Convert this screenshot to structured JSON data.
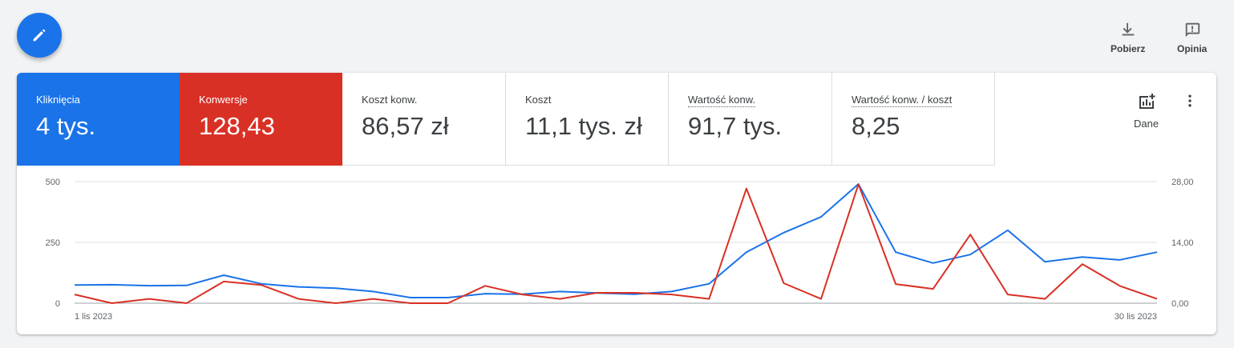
{
  "toolbar": {
    "download_label": "Pobierz",
    "feedback_label": "Opinia"
  },
  "icons": {
    "fab": "pencil-icon",
    "download": "download-icon",
    "feedback": "feedback-icon",
    "data": "add-chart-icon",
    "more": "more-vert-icon"
  },
  "colors": {
    "primary": "#1a73e8",
    "secondary": "#d93025"
  },
  "metrics": [
    {
      "label": "Kliknięcia",
      "value": "4 tys."
    },
    {
      "label": "Konwersje",
      "value": "128,43"
    },
    {
      "label": "Koszt konw.",
      "value": "86,57 zł"
    },
    {
      "label": "Koszt",
      "value": "11,1 tys. zł"
    },
    {
      "label": "Wartość konw.",
      "value": "91,7 tys."
    },
    {
      "label": "Wartość konw. / koszt",
      "value": "8,25"
    }
  ],
  "data_button_label": "Dane",
  "chart_data": {
    "type": "line",
    "x_start_label": "1 lis 2023",
    "x_end_label": "30 lis 2023",
    "left_axis": {
      "ticks": [
        "0",
        "250",
        "500"
      ],
      "range": [
        0,
        500
      ]
    },
    "right_axis": {
      "ticks": [
        "0,00",
        "14,00",
        "28,00"
      ],
      "range": [
        0,
        28
      ]
    },
    "grid": true,
    "series": [
      {
        "name": "Kliknięcia",
        "axis": "left",
        "color": "#1a73e8",
        "values": [
          75,
          76,
          72,
          73,
          115,
          80,
          67,
          62,
          48,
          23,
          23,
          39,
          37,
          48,
          42,
          37,
          48,
          80,
          210,
          290,
          355,
          490,
          210,
          165,
          200,
          300,
          170,
          190,
          178,
          210
        ]
      },
      {
        "name": "Konwersje",
        "axis": "right",
        "color": "#d93025",
        "values": [
          2.0,
          0.0,
          1.0,
          0.0,
          5.0,
          4.2,
          1.0,
          0.0,
          1.0,
          0.0,
          0.0,
          4.0,
          2.0,
          1.0,
          2.4,
          2.4,
          2.0,
          1.0,
          26.4,
          4.6,
          1.0,
          27.4,
          4.4,
          3.3,
          15.8,
          2.0,
          1.0,
          9.0,
          4.0,
          1.0
        ]
      }
    ]
  }
}
